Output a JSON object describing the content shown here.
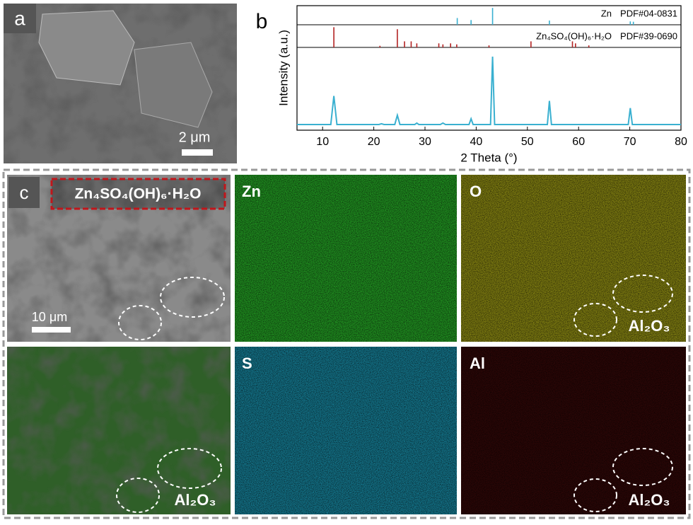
{
  "panel_a": {
    "label": "a",
    "scale_bar": "2 μm"
  },
  "panel_b": {
    "label": "b"
  },
  "chart_data": {
    "type": "xrd",
    "x_label": "2 Theta (°)",
    "y_label": "Intensity (a.u.)",
    "xlim": [
      5,
      80
    ],
    "xticks": [
      10,
      20,
      30,
      40,
      50,
      60,
      70,
      80
    ],
    "ylim": [
      0,
      1.05
    ],
    "references": [
      {
        "name": "Zn",
        "pdf": "PDF#04-0831",
        "color": "#3ab0d0",
        "x": [
          36.3,
          39.0,
          43.2,
          54.3,
          70.1,
          70.7
        ],
        "values": [
          0.4,
          0.28,
          1.0,
          0.25,
          0.2,
          0.18
        ]
      },
      {
        "name": "Zn₄SO₄(OH)₆·H₂O",
        "pdf": "PDF#39-0690",
        "color": "#b22222",
        "x": [
          12.2,
          21.2,
          24.6,
          26.0,
          27.3,
          28.4,
          32.7,
          33.5,
          35.0,
          36.2,
          42.5,
          50.7,
          58.8,
          59.4,
          62.0
        ],
        "values": [
          1.0,
          0.08,
          0.9,
          0.3,
          0.3,
          0.2,
          0.2,
          0.15,
          0.2,
          0.15,
          0.1,
          0.3,
          0.3,
          0.2,
          0.1
        ]
      }
    ],
    "series": [
      {
        "color": "#3ab0d0",
        "x": [
          5,
          11.6,
          12.2,
          12.8,
          20,
          21,
          21.5,
          22,
          24.1,
          24.6,
          25.1,
          28,
          28.4,
          28.8,
          33,
          33.5,
          34,
          38.6,
          39,
          39.4,
          42.8,
          43.2,
          43.6,
          53.9,
          54.3,
          54.7,
          69.7,
          70.1,
          70.5,
          80
        ],
        "values": [
          0.05,
          0.05,
          0.45,
          0.05,
          0.05,
          0.05,
          0.06,
          0.05,
          0.05,
          0.18,
          0.05,
          0.05,
          0.07,
          0.05,
          0.05,
          0.07,
          0.05,
          0.05,
          0.13,
          0.05,
          0.05,
          1.0,
          0.05,
          0.05,
          0.38,
          0.05,
          0.05,
          0.28,
          0.05,
          0.05
        ]
      }
    ]
  },
  "panel_c": {
    "label": "c",
    "title": "Zn₄SO₄(OH)₆·H₂O",
    "scale_bar": "10 μm",
    "maps": [
      {
        "element": "Zn"
      },
      {
        "element": "O",
        "annotation": "Al₂O₃"
      },
      {
        "element": "S"
      },
      {
        "element": "Al",
        "annotation": "Al₂O₃"
      }
    ],
    "overlay": {
      "annotation": "Al₂O₃"
    }
  }
}
